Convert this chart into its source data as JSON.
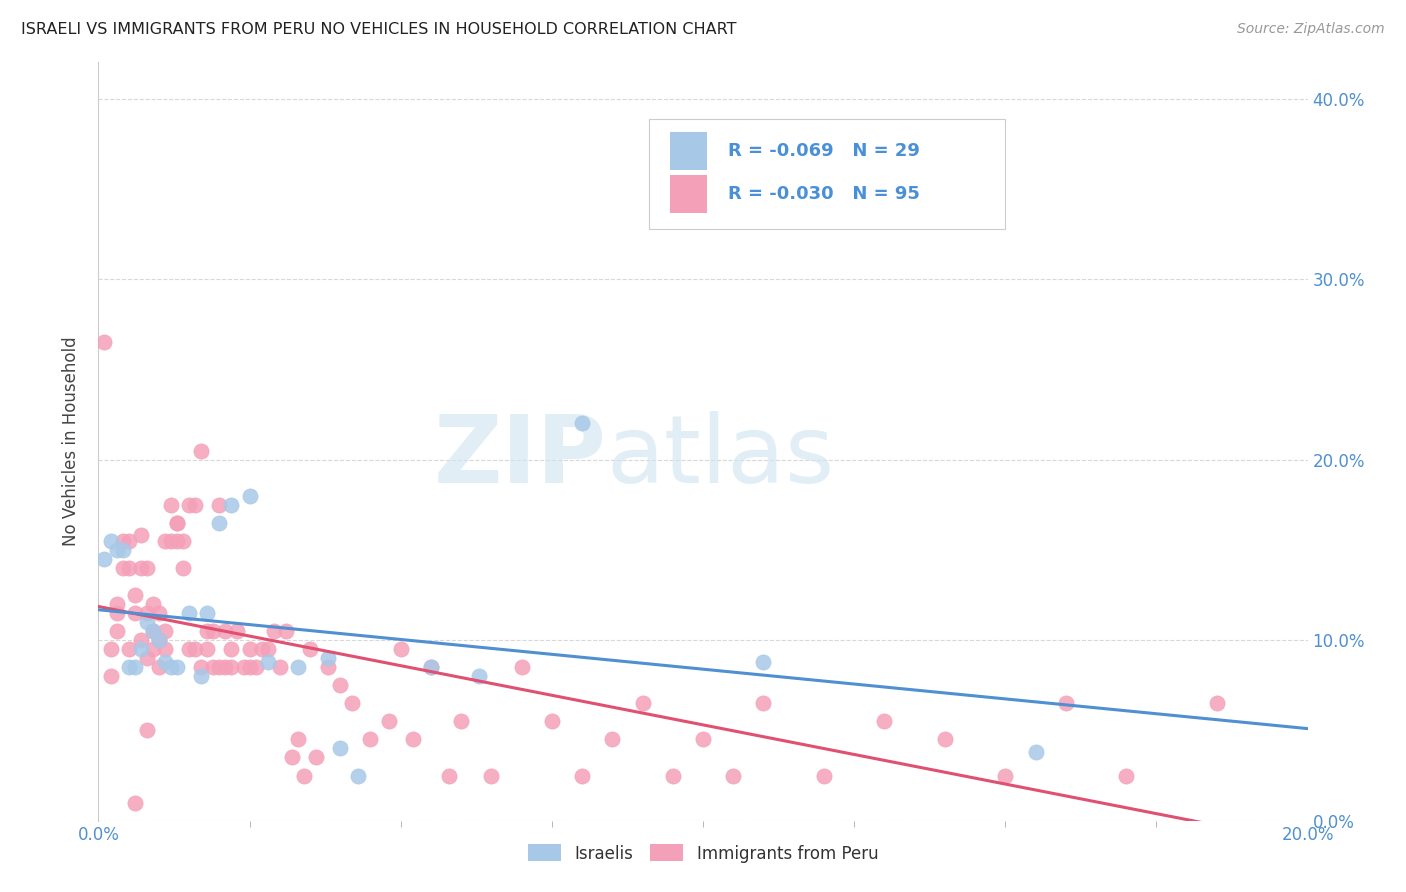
{
  "title": "ISRAELI VS IMMIGRANTS FROM PERU NO VEHICLES IN HOUSEHOLD CORRELATION CHART",
  "source": "Source: ZipAtlas.com",
  "ylabel": "No Vehicles in Household",
  "legend_R_israeli": "-0.069",
  "legend_N_israeli": "29",
  "legend_R_peru": "-0.030",
  "legend_N_peru": "95",
  "color_israeli": "#a8c8e8",
  "color_peru": "#f4a0b8",
  "line_color_israeli": "#5090d0",
  "line_color_peru": "#e05070",
  "background_color": "#ffffff",
  "grid_color": "#d8d8d8",
  "israeli_x": [
    0.001,
    0.002,
    0.003,
    0.004,
    0.005,
    0.006,
    0.007,
    0.008,
    0.009,
    0.01,
    0.011,
    0.012,
    0.013,
    0.015,
    0.017,
    0.018,
    0.02,
    0.022,
    0.025,
    0.028,
    0.033,
    0.038,
    0.04,
    0.043,
    0.055,
    0.063,
    0.08,
    0.11,
    0.155
  ],
  "israeli_y": [
    0.145,
    0.155,
    0.15,
    0.15,
    0.085,
    0.085,
    0.095,
    0.11,
    0.105,
    0.1,
    0.088,
    0.085,
    0.085,
    0.115,
    0.08,
    0.115,
    0.165,
    0.175,
    0.18,
    0.088,
    0.085,
    0.09,
    0.04,
    0.025,
    0.085,
    0.08,
    0.22,
    0.088,
    0.038
  ],
  "peru_x": [
    0.001,
    0.002,
    0.002,
    0.003,
    0.003,
    0.003,
    0.004,
    0.004,
    0.005,
    0.005,
    0.005,
    0.006,
    0.006,
    0.006,
    0.007,
    0.007,
    0.007,
    0.008,
    0.008,
    0.008,
    0.008,
    0.009,
    0.009,
    0.009,
    0.01,
    0.01,
    0.01,
    0.011,
    0.011,
    0.011,
    0.012,
    0.012,
    0.013,
    0.013,
    0.013,
    0.014,
    0.014,
    0.015,
    0.015,
    0.016,
    0.016,
    0.017,
    0.017,
    0.018,
    0.018,
    0.019,
    0.019,
    0.02,
    0.02,
    0.021,
    0.021,
    0.022,
    0.022,
    0.023,
    0.024,
    0.025,
    0.025,
    0.026,
    0.027,
    0.028,
    0.029,
    0.03,
    0.031,
    0.032,
    0.033,
    0.034,
    0.035,
    0.036,
    0.038,
    0.04,
    0.042,
    0.045,
    0.048,
    0.05,
    0.052,
    0.055,
    0.058,
    0.06,
    0.065,
    0.07,
    0.075,
    0.08,
    0.085,
    0.09,
    0.095,
    0.1,
    0.105,
    0.11,
    0.12,
    0.13,
    0.14,
    0.15,
    0.16,
    0.17,
    0.185
  ],
  "peru_y": [
    0.265,
    0.08,
    0.095,
    0.105,
    0.115,
    0.12,
    0.14,
    0.155,
    0.14,
    0.155,
    0.095,
    0.115,
    0.125,
    0.01,
    0.14,
    0.158,
    0.1,
    0.14,
    0.115,
    0.09,
    0.05,
    0.105,
    0.12,
    0.095,
    0.085,
    0.1,
    0.115,
    0.095,
    0.105,
    0.155,
    0.155,
    0.175,
    0.165,
    0.165,
    0.155,
    0.14,
    0.155,
    0.095,
    0.175,
    0.095,
    0.175,
    0.205,
    0.085,
    0.105,
    0.095,
    0.085,
    0.105,
    0.085,
    0.175,
    0.085,
    0.105,
    0.095,
    0.085,
    0.105,
    0.085,
    0.085,
    0.095,
    0.085,
    0.095,
    0.095,
    0.105,
    0.085,
    0.105,
    0.035,
    0.045,
    0.025,
    0.095,
    0.035,
    0.085,
    0.075,
    0.065,
    0.045,
    0.055,
    0.095,
    0.045,
    0.085,
    0.025,
    0.055,
    0.025,
    0.085,
    0.055,
    0.025,
    0.045,
    0.065,
    0.025,
    0.045,
    0.025,
    0.065,
    0.025,
    0.055,
    0.045,
    0.025,
    0.065,
    0.025,
    0.065
  ],
  "xlim": [
    0.0,
    0.2
  ],
  "ylim": [
    0.0,
    0.42
  ],
  "ytick_positions": [
    0.0,
    0.1,
    0.2,
    0.3,
    0.4
  ]
}
